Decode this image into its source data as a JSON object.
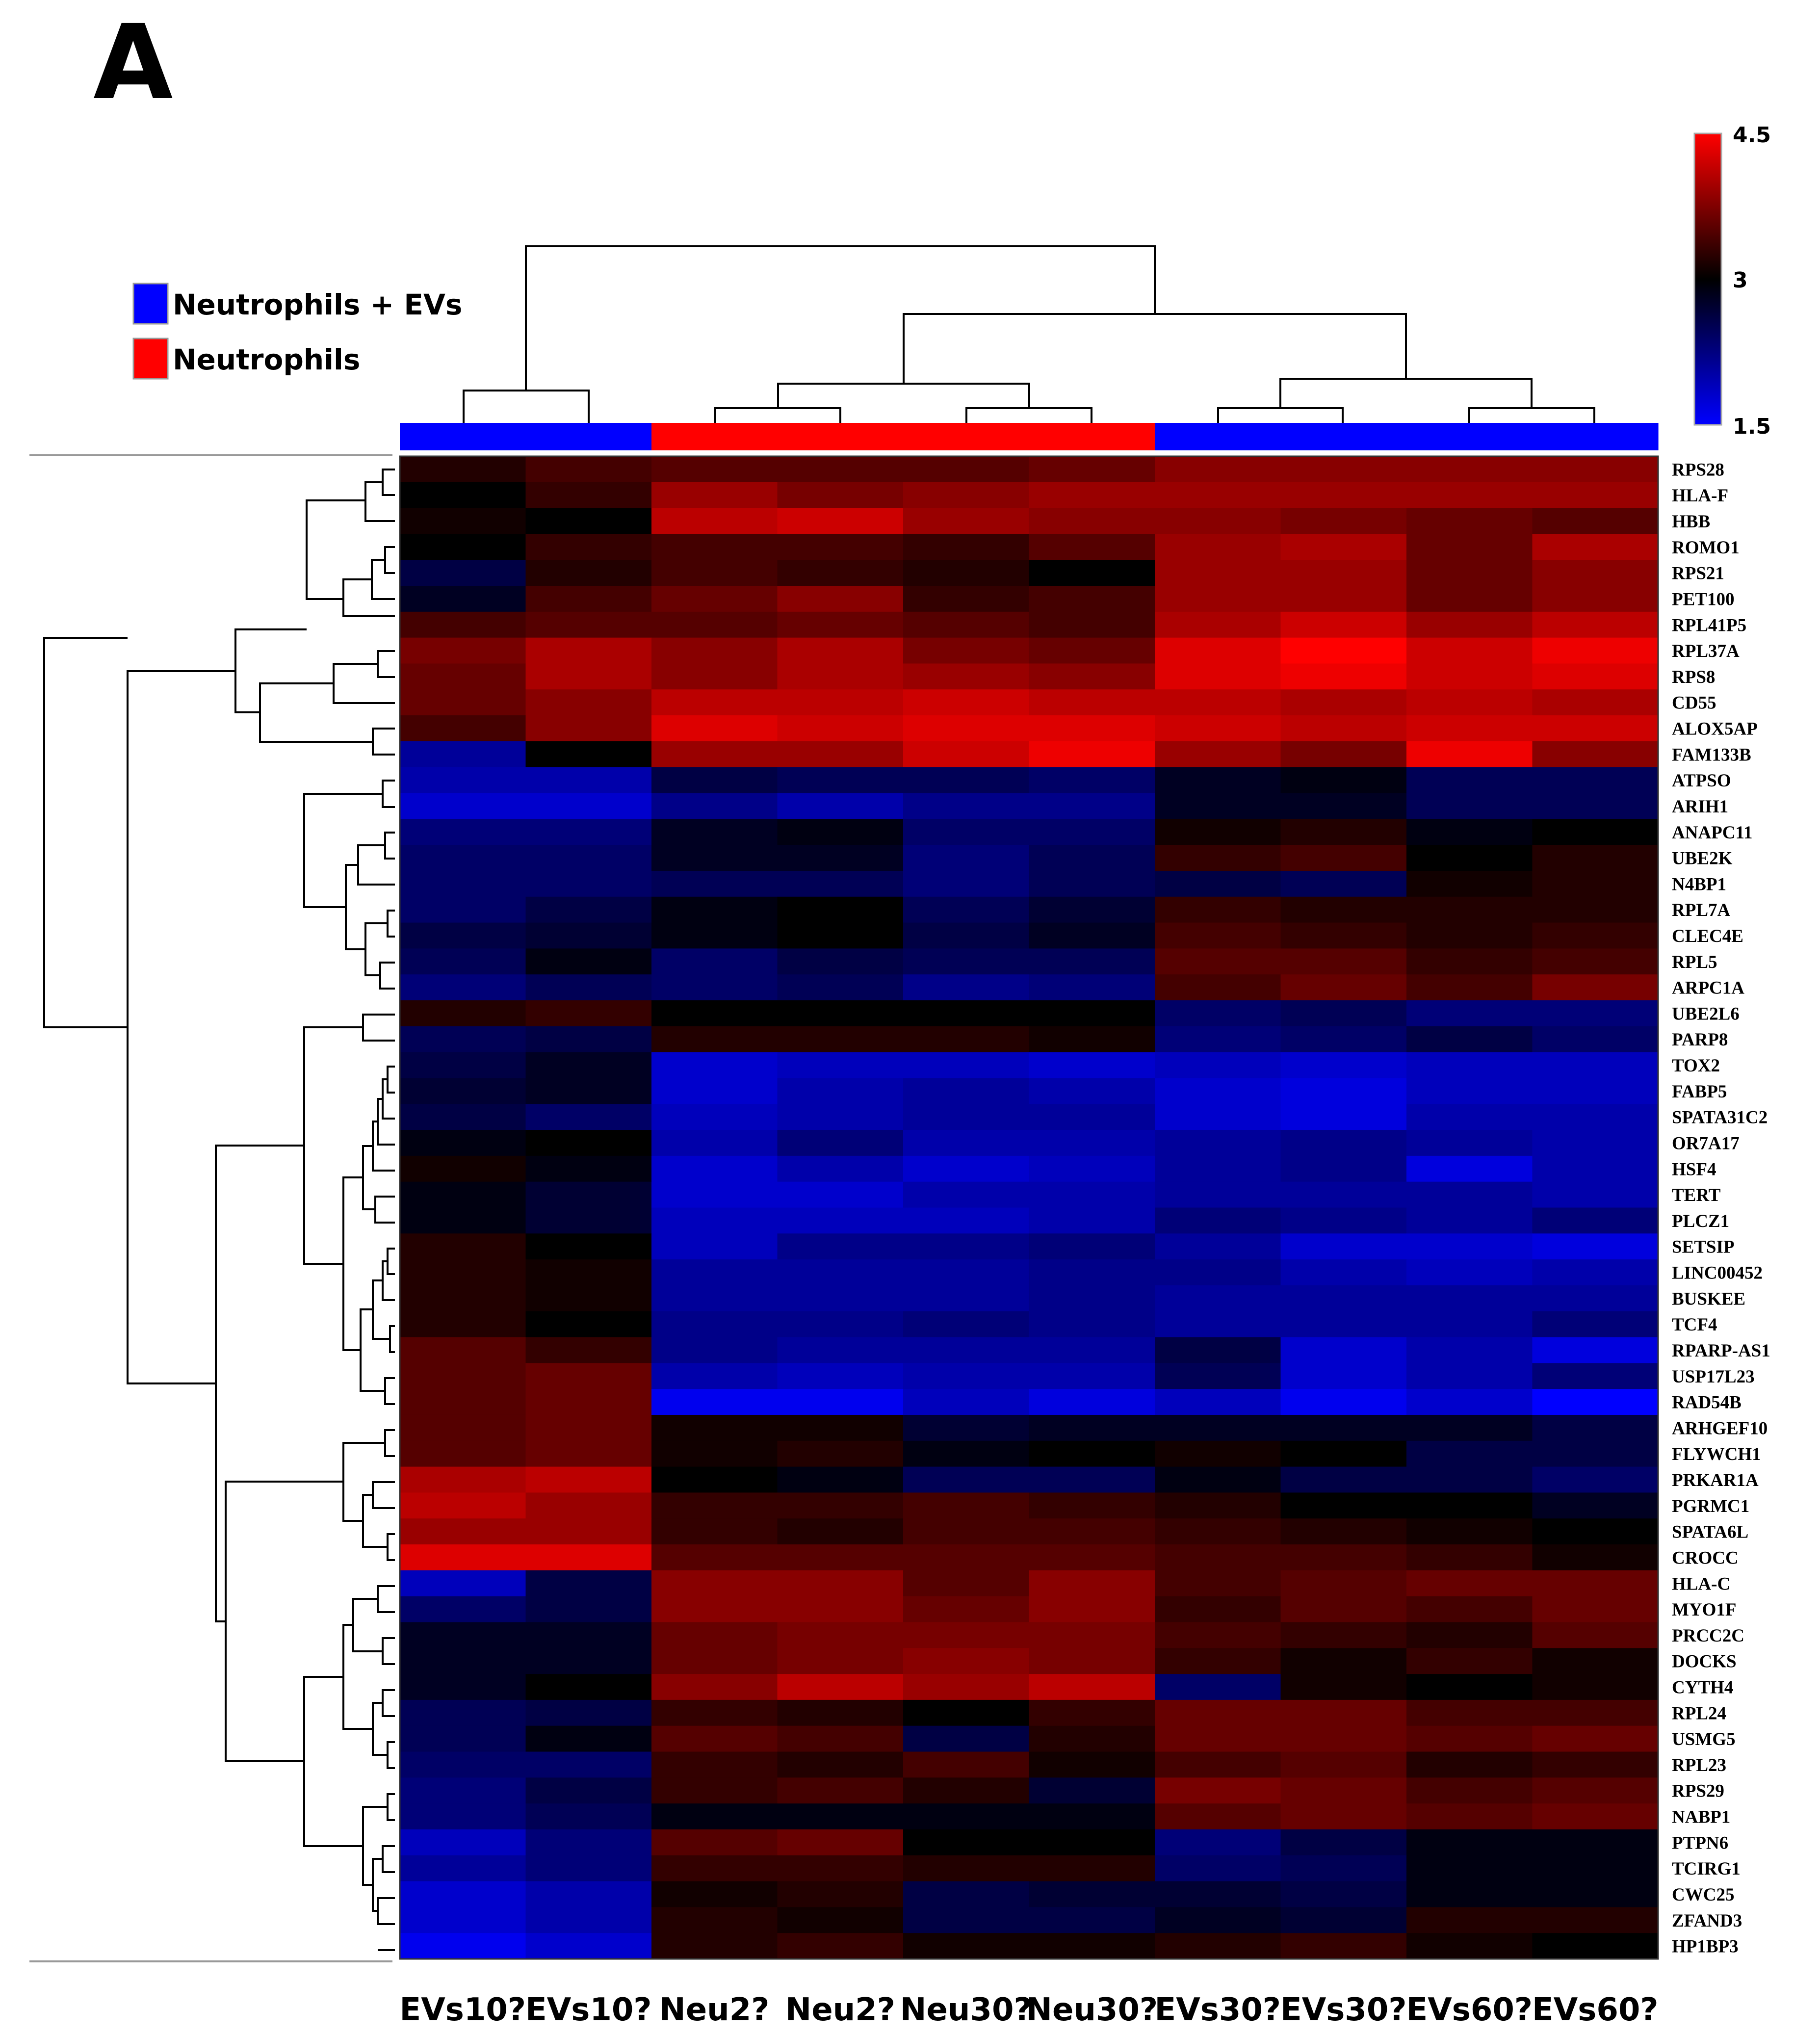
{
  "panel_label": "A",
  "colors": {
    "low": "#0000ff",
    "mid": "#000000",
    "high": "#ff0000",
    "group_neutrophils_evs": "#0000ff",
    "group_neutrophils": "#ff0000"
  },
  "legend": [
    {
      "label": "Neutrophils + EVs",
      "color": "#0000ff"
    },
    {
      "label": "Neutrophils",
      "color": "#ff0000"
    }
  ],
  "colorbar": {
    "min_label": "1.5",
    "mid_label": "3",
    "max_label": "4.5"
  },
  "chart_data": {
    "type": "heatmap",
    "title": "",
    "xlabel": "",
    "ylabel": "",
    "samples": [
      "EVs10?",
      "EVs10?",
      "Neu2?",
      "Neu2?",
      "Neu30?",
      "Neu30?",
      "EVs30?",
      "EVs30?",
      "EVs60?",
      "EVs60?"
    ],
    "sample_groups": [
      "Neutrophils + EVs",
      "Neutrophils + EVs",
      "Neutrophils",
      "Neutrophils",
      "Neutrophils",
      "Neutrophils",
      "Neutrophils + EVs",
      "Neutrophils + EVs",
      "Neutrophils + EVs",
      "Neutrophils + EVs"
    ],
    "genes": [
      "RPS28",
      "HLA-F",
      "HBB",
      "ROMO1",
      "RPS21",
      "PET100",
      "RPL41P5",
      "RPL37A",
      "RPS8",
      "CD55",
      "ALOX5AP",
      "FAM133B",
      "ATPSO",
      "ARIH1",
      "ANAPC11",
      "UBE2K",
      "N4BP1",
      "RPL7A",
      "CLEC4E",
      "RPL5",
      "ARPC1A",
      "UBE2L6",
      "PARP8",
      "TOX2",
      "FABP5",
      "SPATA31C2",
      "OR7A17",
      "HSF4",
      "TERT",
      "PLCZ1",
      "SETSIP",
      "LINC00452",
      "BUSKEE",
      "TCF4",
      "RPARP-AS1",
      "USP17L23",
      "RAD54B",
      "ARHGEF10",
      "FLYWCH1",
      "PRKAR1A",
      "PGRMC1",
      "SPATA6L",
      "CROCC",
      "HLA-C",
      "MYO1F",
      "PRCC2C",
      "DOCKS",
      "CYTH4",
      "RPL24",
      "USMG5",
      "RPL23",
      "RPS29",
      "NABP1",
      "PTPN6",
      "TCIRG1",
      "CWC25",
      "ZFAND3",
      "HP1BP3"
    ],
    "values": [
      [
        3.2,
        3.4,
        3.5,
        3.5,
        3.5,
        3.6,
        3.8,
        3.8,
        3.8,
        3.8
      ],
      [
        3.0,
        3.3,
        3.9,
        3.7,
        3.8,
        3.9,
        3.9,
        3.9,
        3.9,
        3.9
      ],
      [
        3.1,
        3.0,
        4.1,
        4.2,
        3.9,
        3.8,
        3.8,
        3.7,
        3.6,
        3.5
      ],
      [
        3.0,
        3.3,
        3.4,
        3.4,
        3.3,
        3.5,
        3.9,
        4.0,
        3.6,
        4.0
      ],
      [
        2.6,
        3.2,
        3.4,
        3.3,
        3.2,
        3.0,
        3.9,
        3.9,
        3.6,
        3.8
      ],
      [
        2.8,
        3.4,
        3.6,
        3.8,
        3.3,
        3.4,
        3.9,
        3.9,
        3.6,
        3.8
      ],
      [
        3.4,
        3.5,
        3.5,
        3.6,
        3.5,
        3.4,
        4.0,
        4.2,
        3.9,
        4.1
      ],
      [
        3.7,
        4.0,
        3.8,
        4.0,
        3.7,
        3.6,
        4.3,
        4.5,
        4.2,
        4.4
      ],
      [
        3.6,
        4.0,
        3.8,
        4.0,
        3.9,
        3.8,
        4.3,
        4.4,
        4.2,
        4.3
      ],
      [
        3.6,
        3.8,
        4.1,
        4.1,
        4.2,
        4.1,
        4.1,
        4.0,
        4.1,
        4.0
      ],
      [
        3.4,
        3.8,
        4.3,
        4.2,
        4.3,
        4.3,
        4.2,
        4.1,
        4.2,
        4.2
      ],
      [
        2.1,
        3.0,
        3.9,
        3.9,
        4.2,
        4.4,
        3.9,
        3.7,
        4.4,
        3.8
      ],
      [
        2.0,
        2.0,
        2.6,
        2.5,
        2.5,
        2.4,
        2.8,
        2.9,
        2.5,
        2.5
      ],
      [
        1.8,
        1.8,
        2.2,
        2.0,
        2.2,
        2.2,
        2.8,
        2.8,
        2.5,
        2.5
      ],
      [
        2.3,
        2.3,
        2.8,
        2.9,
        2.4,
        2.4,
        3.1,
        3.2,
        2.9,
        3.0
      ],
      [
        2.4,
        2.4,
        2.8,
        2.8,
        2.3,
        2.5,
        3.3,
        3.4,
        3.0,
        3.2
      ],
      [
        2.4,
        2.4,
        2.5,
        2.5,
        2.3,
        2.5,
        2.6,
        2.5,
        3.1,
        3.2
      ],
      [
        2.4,
        2.6,
        2.9,
        3.0,
        2.5,
        2.7,
        3.3,
        3.2,
        3.2,
        3.2
      ],
      [
        2.6,
        2.7,
        2.9,
        3.0,
        2.6,
        2.8,
        3.4,
        3.3,
        3.2,
        3.3
      ],
      [
        2.5,
        2.9,
        2.4,
        2.6,
        2.5,
        2.5,
        3.5,
        3.5,
        3.3,
        3.4
      ],
      [
        2.3,
        2.5,
        2.4,
        2.5,
        2.2,
        2.3,
        3.4,
        3.6,
        3.4,
        3.7
      ],
      [
        3.2,
        3.3,
        3.0,
        3.0,
        3.0,
        3.0,
        2.4,
        2.5,
        2.3,
        2.3
      ],
      [
        2.5,
        2.6,
        3.2,
        3.2,
        3.2,
        3.1,
        2.3,
        2.4,
        2.6,
        2.4
      ],
      [
        2.6,
        2.8,
        1.8,
        1.9,
        1.9,
        1.8,
        1.9,
        1.8,
        1.9,
        1.9
      ],
      [
        2.7,
        2.8,
        1.8,
        2.0,
        2.1,
        2.0,
        1.8,
        1.7,
        1.9,
        1.9
      ],
      [
        2.6,
        2.4,
        1.9,
        2.0,
        2.1,
        2.1,
        1.8,
        1.7,
        2.0,
        2.0
      ],
      [
        2.9,
        3.0,
        2.0,
        2.3,
        2.0,
        2.0,
        2.1,
        2.2,
        2.1,
        2.0
      ],
      [
        3.1,
        2.9,
        1.8,
        2.0,
        1.8,
        1.9,
        2.1,
        2.2,
        1.7,
        2.0
      ],
      [
        2.9,
        2.7,
        1.8,
        1.8,
        2.0,
        2.0,
        2.1,
        2.1,
        2.1,
        2.0
      ],
      [
        2.9,
        2.7,
        1.9,
        1.9,
        1.9,
        2.0,
        2.3,
        2.2,
        2.1,
        2.3
      ],
      [
        3.2,
        3.0,
        1.9,
        2.2,
        2.2,
        2.3,
        2.1,
        1.8,
        1.8,
        1.7
      ],
      [
        3.2,
        3.1,
        2.1,
        2.1,
        2.1,
        2.2,
        2.2,
        2.0,
        1.9,
        2.0
      ],
      [
        3.2,
        3.1,
        2.1,
        2.1,
        2.1,
        2.2,
        2.1,
        2.1,
        2.1,
        2.1
      ],
      [
        3.2,
        3.0,
        2.2,
        2.2,
        2.3,
        2.2,
        2.1,
        2.1,
        2.1,
        2.3
      ],
      [
        3.5,
        3.3,
        2.2,
        2.1,
        2.1,
        2.1,
        2.6,
        1.8,
        2.0,
        1.7
      ],
      [
        3.5,
        3.6,
        2.0,
        1.9,
        2.0,
        2.0,
        2.5,
        1.8,
        2.0,
        2.3
      ],
      [
        3.5,
        3.6,
        1.6,
        1.6,
        1.9,
        1.7,
        1.9,
        1.6,
        1.8,
        1.5
      ],
      [
        3.5,
        3.6,
        3.1,
        3.1,
        2.7,
        2.8,
        2.8,
        2.8,
        2.8,
        2.6
      ],
      [
        3.5,
        3.6,
        3.1,
        3.2,
        2.9,
        3.0,
        3.1,
        3.0,
        2.6,
        2.6
      ],
      [
        4.0,
        4.1,
        3.0,
        2.9,
        2.5,
        2.5,
        2.9,
        2.6,
        2.6,
        2.4
      ],
      [
        4.1,
        3.9,
        3.3,
        3.3,
        3.4,
        3.3,
        3.2,
        3.0,
        3.0,
        2.8
      ],
      [
        3.9,
        3.9,
        3.3,
        3.2,
        3.4,
        3.4,
        3.3,
        3.2,
        3.1,
        3.0
      ],
      [
        4.3,
        4.3,
        3.5,
        3.5,
        3.5,
        3.5,
        3.4,
        3.4,
        3.3,
        3.1
      ],
      [
        1.9,
        2.6,
        3.8,
        3.8,
        3.5,
        3.8,
        3.4,
        3.5,
        3.6,
        3.6
      ],
      [
        2.4,
        2.6,
        3.8,
        3.8,
        3.6,
        3.8,
        3.3,
        3.5,
        3.4,
        3.6
      ],
      [
        2.8,
        2.8,
        3.6,
        3.7,
        3.7,
        3.7,
        3.4,
        3.3,
        3.2,
        3.5
      ],
      [
        2.8,
        2.8,
        3.6,
        3.7,
        3.8,
        3.7,
        3.3,
        3.1,
        3.3,
        3.1
      ],
      [
        2.8,
        3.0,
        3.8,
        4.1,
        3.9,
        4.1,
        2.4,
        3.1,
        3.0,
        3.1
      ],
      [
        2.5,
        2.6,
        3.3,
        3.2,
        3.0,
        3.3,
        3.6,
        3.6,
        3.4,
        3.4
      ],
      [
        2.5,
        2.9,
        3.5,
        3.4,
        2.6,
        3.2,
        3.6,
        3.6,
        3.5,
        3.6
      ],
      [
        2.4,
        2.4,
        3.3,
        3.2,
        3.4,
        3.1,
        3.4,
        3.5,
        3.2,
        3.3
      ],
      [
        2.3,
        2.6,
        3.3,
        3.4,
        3.2,
        2.7,
        3.7,
        3.6,
        3.4,
        3.5
      ],
      [
        2.3,
        2.5,
        2.9,
        2.9,
        2.9,
        2.9,
        3.5,
        3.6,
        3.5,
        3.6
      ],
      [
        1.9,
        2.3,
        3.5,
        3.6,
        3.0,
        3.0,
        2.3,
        2.6,
        2.9,
        2.9
      ],
      [
        2.1,
        2.3,
        3.3,
        3.3,
        3.2,
        3.2,
        2.4,
        2.5,
        2.9,
        2.9
      ],
      [
        1.8,
        2.0,
        3.1,
        3.2,
        2.6,
        2.7,
        2.7,
        2.6,
        2.9,
        2.9
      ],
      [
        1.8,
        2.0,
        3.2,
        3.1,
        2.6,
        2.6,
        2.8,
        2.7,
        3.2,
        3.2
      ],
      [
        1.6,
        1.8,
        3.2,
        3.3,
        3.1,
        3.1,
        3.2,
        3.3,
        3.1,
        3.0
      ]
    ],
    "scale": {
      "min": 1.5,
      "mid": 3,
      "max": 4.5
    },
    "legend_position": "top-left",
    "colorbar_position": "top-right",
    "grid": false
  }
}
